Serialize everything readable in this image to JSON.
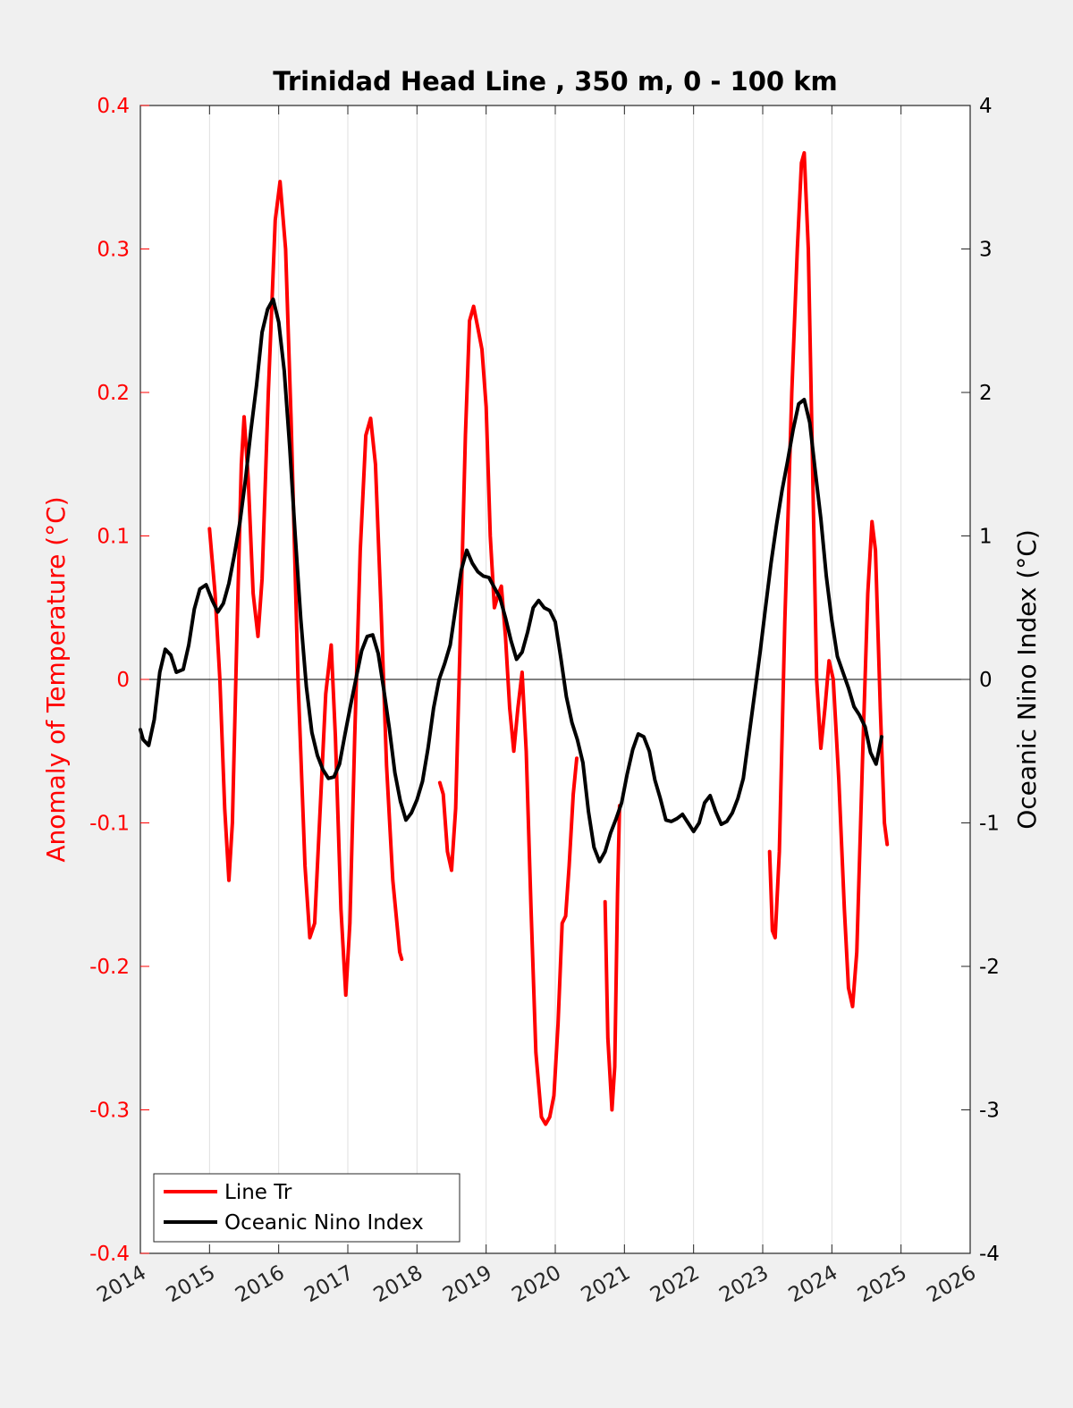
{
  "chart_data": {
    "type": "line",
    "title": "Trinidad Head Line , 350 m, 0 - 100 km",
    "ylabel_left": "Anomaly of Temperature (°C)",
    "ylabel_right": "Oceanic Nino Index (°C)",
    "xlim": [
      2014,
      2026
    ],
    "ylim_left": [
      -0.4,
      0.4
    ],
    "ylim_right": [
      -4,
      4
    ],
    "x_ticks": [
      "2014",
      "2015",
      "2016",
      "2017",
      "2018",
      "2019",
      "2020",
      "2021",
      "2022",
      "2023",
      "2024",
      "2025",
      "2026"
    ],
    "y_left_ticks": [
      "-0.4",
      "-0.3",
      "-0.2",
      "-0.1",
      "0",
      "0.1",
      "0.2",
      "0.3",
      "0.4"
    ],
    "y_right_ticks": [
      "-4",
      "-3",
      "-2",
      "-1",
      "0",
      "1",
      "2",
      "3",
      "4"
    ],
    "grid": "vertical",
    "legend_position": "bottom-left",
    "colors": {
      "line_tr": "#ff0000",
      "oni": "#000000",
      "left_axis": "#ff0000",
      "right_axis": "#000000"
    },
    "series": [
      {
        "name": "Line Tr",
        "axis": "left",
        "segments": [
          [
            [
              2015.0,
              0.105
            ],
            [
              2015.08,
              0.06
            ],
            [
              2015.15,
              0.0
            ],
            [
              2015.22,
              -0.09
            ],
            [
              2015.28,
              -0.14
            ],
            [
              2015.33,
              -0.1
            ],
            [
              2015.4,
              0.04
            ],
            [
              2015.46,
              0.15
            ],
            [
              2015.5,
              0.183
            ],
            [
              2015.56,
              0.14
            ],
            [
              2015.63,
              0.06
            ],
            [
              2015.7,
              0.03
            ],
            [
              2015.76,
              0.07
            ],
            [
              2015.85,
              0.2
            ],
            [
              2015.95,
              0.32
            ],
            [
              2016.02,
              0.347
            ],
            [
              2016.1,
              0.3
            ],
            [
              2016.18,
              0.18
            ],
            [
              2016.28,
              0.0
            ],
            [
              2016.38,
              -0.13
            ],
            [
              2016.45,
              -0.18
            ],
            [
              2016.52,
              -0.17
            ],
            [
              2016.6,
              -0.09
            ],
            [
              2016.68,
              -0.01
            ],
            [
              2016.76,
              0.024
            ],
            [
              2016.82,
              -0.04
            ],
            [
              2016.9,
              -0.16
            ],
            [
              2016.97,
              -0.22
            ],
            [
              2017.03,
              -0.17
            ],
            [
              2017.1,
              -0.04
            ],
            [
              2017.18,
              0.09
            ],
            [
              2017.26,
              0.17
            ],
            [
              2017.33,
              0.182
            ],
            [
              2017.4,
              0.15
            ],
            [
              2017.48,
              0.05
            ],
            [
              2017.56,
              -0.06
            ],
            [
              2017.65,
              -0.14
            ],
            [
              2017.75,
              -0.19
            ],
            [
              2017.78,
              -0.195
            ]
          ],
          [
            [
              2018.33,
              -0.072
            ],
            [
              2018.38,
              -0.08
            ],
            [
              2018.44,
              -0.12
            ],
            [
              2018.5,
              -0.133
            ],
            [
              2018.56,
              -0.09
            ],
            [
              2018.62,
              0.02
            ],
            [
              2018.7,
              0.17
            ],
            [
              2018.76,
              0.25
            ],
            [
              2018.82,
              0.26
            ],
            [
              2018.88,
              0.245
            ],
            [
              2018.94,
              0.23
            ],
            [
              2019.0,
              0.19
            ],
            [
              2019.06,
              0.1
            ],
            [
              2019.12,
              0.05
            ],
            [
              2019.18,
              0.06
            ],
            [
              2019.22,
              0.065
            ],
            [
              2019.28,
              0.03
            ],
            [
              2019.34,
              -0.02
            ],
            [
              2019.4,
              -0.05
            ],
            [
              2019.46,
              -0.02
            ],
            [
              2019.52,
              0.005
            ],
            [
              2019.58,
              -0.05
            ],
            [
              2019.65,
              -0.16
            ],
            [
              2019.72,
              -0.26
            ],
            [
              2019.8,
              -0.305
            ],
            [
              2019.86,
              -0.31
            ],
            [
              2019.92,
              -0.305
            ],
            [
              2019.98,
              -0.29
            ],
            [
              2020.04,
              -0.24
            ],
            [
              2020.1,
              -0.17
            ],
            [
              2020.15,
              -0.165
            ],
            [
              2020.2,
              -0.13
            ],
            [
              2020.26,
              -0.08
            ],
            [
              2020.31,
              -0.055
            ]
          ],
          [
            [
              2020.72,
              -0.155
            ],
            [
              2020.76,
              -0.25
            ],
            [
              2020.82,
              -0.3
            ],
            [
              2020.86,
              -0.27
            ],
            [
              2020.9,
              -0.15
            ],
            [
              2020.93,
              -0.088
            ]
          ],
          [
            [
              2023.1,
              -0.12
            ],
            [
              2023.14,
              -0.175
            ],
            [
              2023.18,
              -0.18
            ],
            [
              2023.24,
              -0.12
            ],
            [
              2023.32,
              0.04
            ],
            [
              2023.42,
              0.2
            ],
            [
              2023.5,
              0.3
            ],
            [
              2023.56,
              0.36
            ],
            [
              2023.6,
              0.367
            ],
            [
              2023.66,
              0.3
            ],
            [
              2023.72,
              0.15
            ],
            [
              2023.78,
              0.0
            ],
            [
              2023.84,
              -0.048
            ],
            [
              2023.9,
              -0.02
            ],
            [
              2023.96,
              0.013
            ],
            [
              2024.02,
              0.0
            ],
            [
              2024.1,
              -0.07
            ],
            [
              2024.18,
              -0.16
            ],
            [
              2024.24,
              -0.215
            ],
            [
              2024.3,
              -0.228
            ],
            [
              2024.36,
              -0.19
            ],
            [
              2024.44,
              -0.06
            ],
            [
              2024.52,
              0.06
            ],
            [
              2024.58,
              0.11
            ],
            [
              2024.63,
              0.09
            ],
            [
              2024.7,
              -0.02
            ],
            [
              2024.76,
              -0.1
            ],
            [
              2024.8,
              -0.115
            ]
          ]
        ]
      },
      {
        "name": "Oceanic Nino Index",
        "axis": "right",
        "segments": [
          [
            [
              2014.0,
              -0.35
            ],
            [
              2014.04,
              -0.42
            ],
            [
              2014.12,
              -0.46
            ],
            [
              2014.2,
              -0.28
            ],
            [
              2014.28,
              0.05
            ],
            [
              2014.36,
              0.21
            ],
            [
              2014.44,
              0.17
            ],
            [
              2014.52,
              0.05
            ],
            [
              2014.62,
              0.07
            ],
            [
              2014.7,
              0.24
            ],
            [
              2014.78,
              0.49
            ],
            [
              2014.86,
              0.63
            ],
            [
              2014.95,
              0.66
            ],
            [
              2015.04,
              0.55
            ],
            [
              2015.12,
              0.47
            ],
            [
              2015.2,
              0.53
            ],
            [
              2015.28,
              0.67
            ],
            [
              2015.36,
              0.87
            ],
            [
              2015.44,
              1.1
            ],
            [
              2015.52,
              1.39
            ],
            [
              2015.6,
              1.74
            ],
            [
              2015.68,
              2.05
            ],
            [
              2015.76,
              2.42
            ],
            [
              2015.84,
              2.58
            ],
            [
              2015.92,
              2.65
            ],
            [
              2016.0,
              2.49
            ],
            [
              2016.08,
              2.15
            ],
            [
              2016.16,
              1.62
            ],
            [
              2016.24,
              1.0
            ],
            [
              2016.32,
              0.42
            ],
            [
              2016.4,
              -0.05
            ],
            [
              2016.48,
              -0.37
            ],
            [
              2016.56,
              -0.53
            ],
            [
              2016.64,
              -0.63
            ],
            [
              2016.72,
              -0.69
            ],
            [
              2016.8,
              -0.68
            ],
            [
              2016.88,
              -0.59
            ],
            [
              2016.96,
              -0.38
            ],
            [
              2017.04,
              -0.18
            ],
            [
              2017.12,
              0.01
            ],
            [
              2017.2,
              0.2
            ],
            [
              2017.28,
              0.3
            ],
            [
              2017.36,
              0.31
            ],
            [
              2017.44,
              0.18
            ],
            [
              2017.52,
              -0.07
            ],
            [
              2017.6,
              -0.34
            ],
            [
              2017.68,
              -0.65
            ],
            [
              2017.76,
              -0.85
            ],
            [
              2017.84,
              -0.98
            ],
            [
              2017.92,
              -0.93
            ],
            [
              2018.0,
              -0.84
            ],
            [
              2018.08,
              -0.71
            ],
            [
              2018.16,
              -0.48
            ],
            [
              2018.24,
              -0.2
            ],
            [
              2018.32,
              0.0
            ],
            [
              2018.4,
              0.11
            ],
            [
              2018.48,
              0.24
            ],
            [
              2018.56,
              0.5
            ],
            [
              2018.64,
              0.76
            ],
            [
              2018.72,
              0.9
            ],
            [
              2018.8,
              0.81
            ],
            [
              2018.88,
              0.75
            ],
            [
              2018.96,
              0.72
            ],
            [
              2019.04,
              0.71
            ],
            [
              2019.12,
              0.64
            ],
            [
              2019.2,
              0.57
            ],
            [
              2019.28,
              0.43
            ],
            [
              2019.36,
              0.27
            ],
            [
              2019.44,
              0.14
            ],
            [
              2019.52,
              0.19
            ],
            [
              2019.6,
              0.33
            ],
            [
              2019.68,
              0.5
            ],
            [
              2019.76,
              0.55
            ],
            [
              2019.84,
              0.5
            ],
            [
              2019.92,
              0.48
            ],
            [
              2020.0,
              0.4
            ],
            [
              2020.08,
              0.15
            ],
            [
              2020.16,
              -0.12
            ],
            [
              2020.24,
              -0.3
            ],
            [
              2020.32,
              -0.42
            ],
            [
              2020.4,
              -0.58
            ],
            [
              2020.48,
              -0.92
            ],
            [
              2020.56,
              -1.17
            ],
            [
              2020.64,
              -1.27
            ],
            [
              2020.72,
              -1.2
            ],
            [
              2020.8,
              -1.07
            ],
            [
              2020.88,
              -0.97
            ],
            [
              2020.96,
              -0.86
            ],
            [
              2021.04,
              -0.66
            ],
            [
              2021.12,
              -0.49
            ],
            [
              2021.2,
              -0.38
            ],
            [
              2021.28,
              -0.4
            ],
            [
              2021.36,
              -0.5
            ],
            [
              2021.44,
              -0.7
            ],
            [
              2021.52,
              -0.83
            ],
            [
              2021.6,
              -0.98
            ],
            [
              2021.68,
              -0.99
            ],
            [
              2021.76,
              -0.97
            ],
            [
              2021.84,
              -0.94
            ],
            [
              2021.92,
              -1.0
            ],
            [
              2022.0,
              -1.06
            ],
            [
              2022.08,
              -1.0
            ],
            [
              2022.16,
              -0.86
            ],
            [
              2022.24,
              -0.81
            ],
            [
              2022.32,
              -0.92
            ],
            [
              2022.4,
              -1.01
            ],
            [
              2022.48,
              -0.99
            ],
            [
              2022.56,
              -0.93
            ],
            [
              2022.64,
              -0.83
            ],
            [
              2022.72,
              -0.69
            ],
            [
              2022.8,
              -0.4
            ],
            [
              2022.88,
              -0.11
            ],
            [
              2022.96,
              0.18
            ],
            [
              2023.04,
              0.5
            ],
            [
              2023.12,
              0.81
            ],
            [
              2023.2,
              1.08
            ],
            [
              2023.28,
              1.32
            ],
            [
              2023.36,
              1.52
            ],
            [
              2023.44,
              1.74
            ],
            [
              2023.52,
              1.92
            ],
            [
              2023.6,
              1.95
            ],
            [
              2023.68,
              1.79
            ],
            [
              2023.76,
              1.45
            ],
            [
              2023.84,
              1.12
            ],
            [
              2023.92,
              0.72
            ],
            [
              2024.0,
              0.41
            ],
            [
              2024.08,
              0.16
            ],
            [
              2024.16,
              0.05
            ],
            [
              2024.24,
              -0.06
            ],
            [
              2024.32,
              -0.19
            ],
            [
              2024.4,
              -0.25
            ],
            [
              2024.48,
              -0.33
            ],
            [
              2024.56,
              -0.51
            ],
            [
              2024.64,
              -0.59
            ],
            [
              2024.72,
              -0.4
            ]
          ]
        ]
      }
    ]
  },
  "legend": {
    "items": [
      {
        "label": "Line Tr",
        "color": "#ff0000"
      },
      {
        "label": "Oceanic Nino Index",
        "color": "#000000"
      }
    ]
  }
}
